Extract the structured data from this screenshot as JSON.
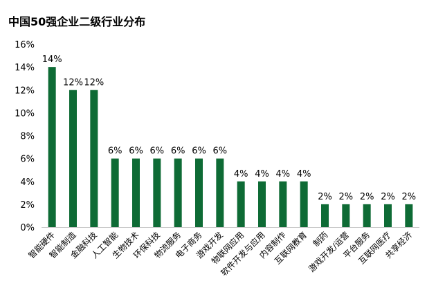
{
  "chart_data": {
    "type": "bar",
    "title": "中国50强企业二级行业分布",
    "xlabel": "",
    "ylabel": "",
    "ylim": [
      0,
      16
    ],
    "ytick_values": [
      0,
      2,
      4,
      6,
      8,
      10,
      12,
      14,
      16
    ],
    "ytick_labels": [
      "0%",
      "2%",
      "4%",
      "6%",
      "8%",
      "10%",
      "12%",
      "14%",
      "16%"
    ],
    "grid": false,
    "legend": "none",
    "bar_color": "#0e6b35",
    "categories": [
      "智能硬件",
      "智能制造",
      "金融科技",
      "人工智能",
      "生物技术",
      "环保科技",
      "物流服务",
      "电子商务",
      "游戏开发",
      "物联网应用",
      "软件开发与应用",
      "内容制作",
      "互联网教育",
      "制药",
      "游戏开发/运营",
      "平台服务",
      "互联网医疗",
      "共享经济"
    ],
    "values": [
      14,
      12,
      12,
      6,
      6,
      6,
      6,
      6,
      6,
      4,
      4,
      4,
      4,
      2,
      2,
      2,
      2,
      2
    ],
    "data_labels": [
      "14%",
      "12%",
      "12%",
      "6%",
      "6%",
      "6%",
      "6%",
      "6%",
      "6%",
      "4%",
      "4%",
      "4%",
      "4%",
      "2%",
      "2%",
      "2%",
      "2%",
      "2%"
    ]
  }
}
